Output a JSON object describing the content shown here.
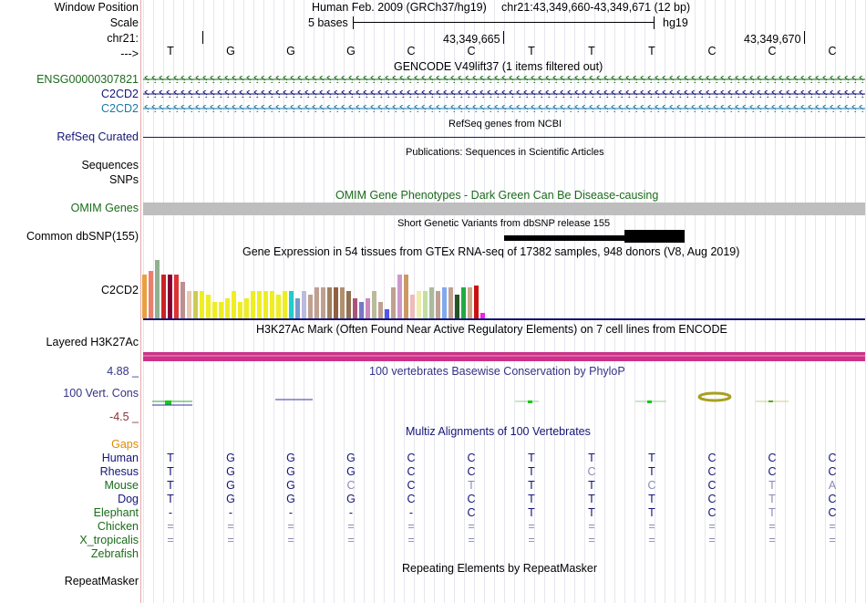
{
  "labels": {
    "window_position": "Window Position",
    "scale": "Scale",
    "chrom": "chr21:",
    "strand_arrow": "--->",
    "gene1": "ENSG00000307821",
    "gene2": "C2CD2",
    "gene3": "C2CD2",
    "refseq": "RefSeq Curated",
    "sequences": "Sequences",
    "snps": "SNPs",
    "omim": "OMIM Genes",
    "dbsnp": "Common dbSNP(155)",
    "gtex_gene": "C2CD2",
    "h3k27ac": "Layered H3K27Ac",
    "phylop_max": "4.88 _",
    "phylop_name": "100 Vert. Cons",
    "phylop_min": "-4.5 _",
    "gaps": "Gaps",
    "repeatmasker": "RepeatMasker"
  },
  "header": {
    "assembly": "Human Feb. 2009 (GRCh37/hg19)",
    "position": "chr21:43,349,660-43,349,671 (12 bp)",
    "scale_text": "5 bases",
    "scale_db": "hg19",
    "coord1": "43,349,665",
    "coord2": "43,349,670"
  },
  "reference_bases": [
    "T",
    "G",
    "G",
    "G",
    "C",
    "C",
    "T",
    "T",
    "T",
    "C",
    "C",
    "C"
  ],
  "titles": {
    "gencode": "GENCODE V49lift37 (1 items filtered out)",
    "refseq": "RefSeq genes from NCBI",
    "publications": "Publications: Sequences in Scientific Articles",
    "omim": "OMIM Gene Phenotypes - Dark Green Can Be Disease-causing",
    "dbsnp": "Short Genetic Variants from dbSNP release 155",
    "gtex": "Gene Expression in 54 tissues from GTEx RNA-seq of 17382 samples, 948 donors (V8, Aug 2019)",
    "h3k27ac": "H3K27Ac Mark (Often Found Near Active Regulatory Elements) on 7 cell lines from ENCODE",
    "phylop": "100 vertebrates Basewise Conservation by PhyloP",
    "multiz": "Multiz Alignments of 100 Vertebrates",
    "repeatmasker": "Repeating Elements by RepeatMasker"
  },
  "species": [
    {
      "name": "Human",
      "bases": [
        "T",
        "G",
        "G",
        "G",
        "C",
        "C",
        "T",
        "T",
        "T",
        "C",
        "C",
        "C"
      ],
      "dim": []
    },
    {
      "name": "Rhesus",
      "bases": [
        "T",
        "G",
        "G",
        "G",
        "C",
        "C",
        "T",
        "C",
        "T",
        "C",
        "C",
        "C"
      ],
      "dim": [
        7
      ]
    },
    {
      "name": "Mouse",
      "bases": [
        "T",
        "G",
        "G",
        "C",
        "C",
        "T",
        "T",
        "T",
        "C",
        "C",
        "T",
        "A"
      ],
      "dim": [
        3,
        5,
        8,
        10,
        11
      ]
    },
    {
      "name": "Dog",
      "bases": [
        "T",
        "G",
        "G",
        "G",
        "C",
        "C",
        "T",
        "T",
        "T",
        "C",
        "T",
        "C"
      ],
      "dim": [
        10
      ]
    },
    {
      "name": "Elephant",
      "bases": [
        "-",
        "-",
        "-",
        "-",
        "-",
        "C",
        "T",
        "T",
        "T",
        "C",
        "T",
        "C"
      ],
      "dim": [
        10
      ]
    },
    {
      "name": "Chicken",
      "bases": [
        "=",
        "=",
        "=",
        "=",
        "=",
        "=",
        "=",
        "=",
        "=",
        "=",
        "=",
        "="
      ],
      "dim": [
        0,
        1,
        2,
        3,
        4,
        5,
        6,
        7,
        8,
        9,
        10,
        11
      ]
    },
    {
      "name": "X_tropicalis",
      "bases": [
        "=",
        "=",
        "=",
        "=",
        "=",
        "=",
        "=",
        "=",
        "=",
        "=",
        "=",
        "="
      ],
      "dim": [
        0,
        1,
        2,
        3,
        4,
        5,
        6,
        7,
        8,
        9,
        10,
        11
      ]
    },
    {
      "name": "Zebrafish",
      "bases": [],
      "dim": []
    }
  ],
  "chart_data": {
    "type": "bar",
    "title": "Gene Expression in 54 tissues from GTEx RNA-seq of 17382 samples, 948 donors (V8, Aug 2019)",
    "values": [
      48,
      52,
      64,
      48,
      48,
      48,
      40,
      30,
      30,
      30,
      26,
      18,
      18,
      22,
      30,
      18,
      22,
      30,
      30,
      30,
      30,
      26,
      30,
      30,
      22,
      30,
      26,
      34,
      34,
      34,
      34,
      34,
      30,
      22,
      18,
      22,
      30,
      18,
      10,
      34,
      48,
      48,
      26,
      30,
      30,
      34,
      30,
      34,
      34,
      26,
      34,
      34,
      36,
      6
    ],
    "colors": [
      "#e8a040",
      "#e88070",
      "#90b090",
      "#cc2222",
      "#880033",
      "#dd3333",
      "#bb9090",
      "#e8c8b0",
      "#cccc55",
      "#eeee22",
      "#eeee22",
      "#eeee22",
      "#eeee22",
      "#eeee22",
      "#eeee22",
      "#eeee22",
      "#eeee22",
      "#eeee22",
      "#eeee22",
      "#eeee22",
      "#eeee22",
      "#eeee22",
      "#eeee22",
      "#22cccc",
      "#7799cc",
      "#bbbbdd",
      "#c0a090",
      "#c0a090",
      "#c0a090",
      "#a08060",
      "#906040",
      "#b09070",
      "#907050",
      "#aa5577",
      "#7777cc",
      "#cc88bb",
      "#bbbb99",
      "#c0a090",
      "#5555ee",
      "#c0a090",
      "#cc99cc",
      "#cc9966",
      "#eebbbb",
      "#eeeeaa",
      "#c0e0a0",
      "#aabb99",
      "#c0a090",
      "#80aaee",
      "#c0a090",
      "#225522",
      "#22aa44",
      "#ccaa88",
      "#cc1111",
      "#ee22ee"
    ]
  }
}
